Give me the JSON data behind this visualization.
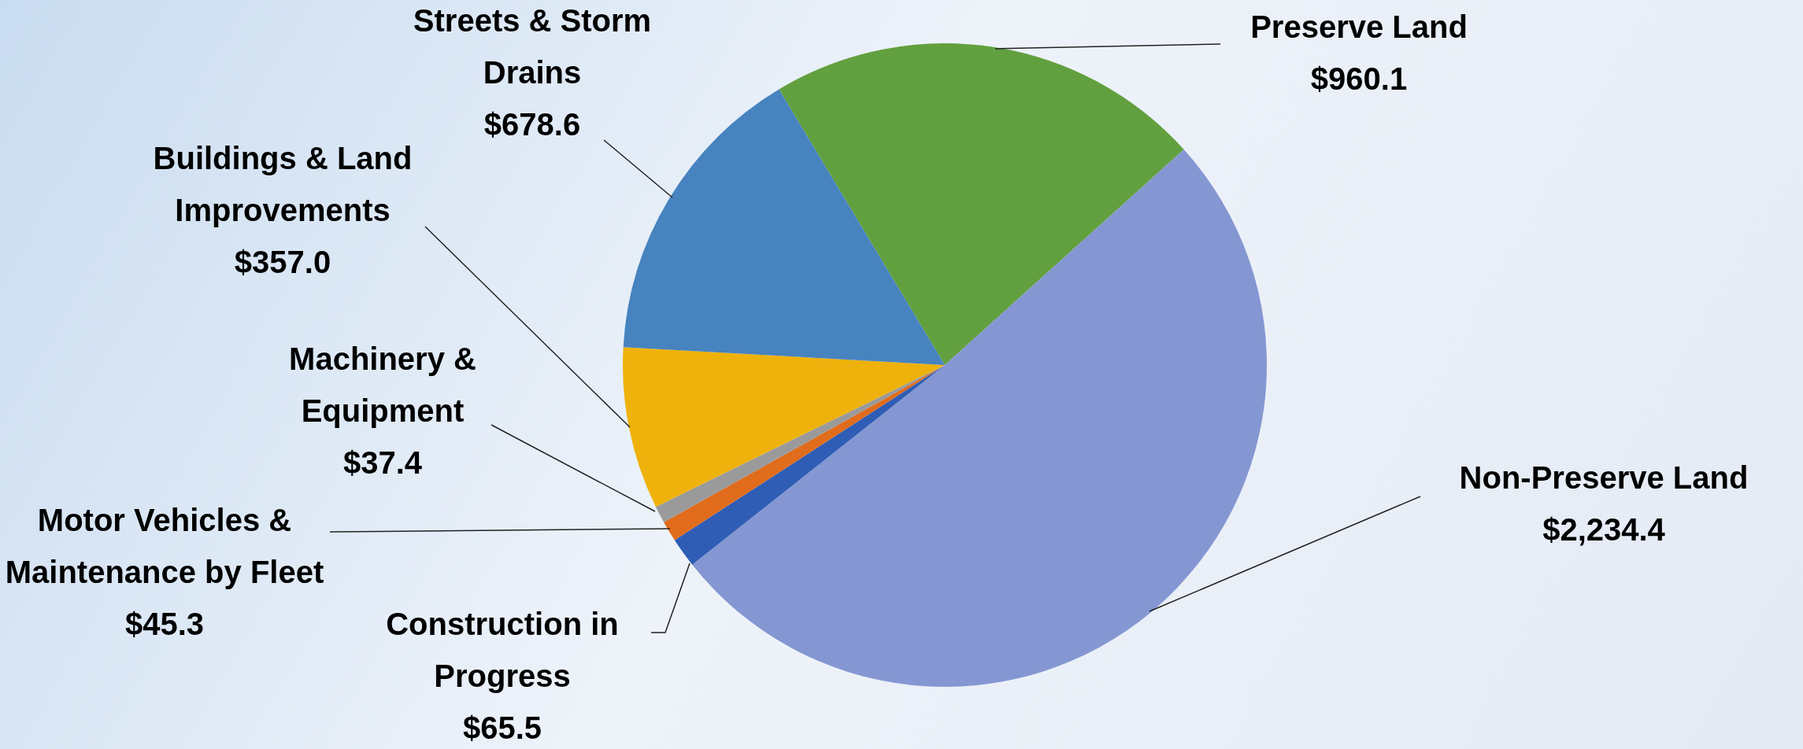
{
  "chart_data": {
    "type": "pie",
    "categories": [
      "Preserve Land",
      "Non-Preserve Land",
      "Construction in Progress",
      "Motor Vehicles & Maintenance by Fleet",
      "Machinery & Equipment",
      "Buildings & Land Improvements",
      "Streets & Storm Drains"
    ],
    "values": [
      960.1,
      2234.4,
      65.5,
      45.3,
      37.4,
      357.0,
      678.6
    ],
    "value_labels": [
      "$960.1",
      "$2,234.4",
      "$65.5",
      "$45.3",
      "$37.4",
      "$357.0",
      "$678.6"
    ],
    "colors": [
      "#62a03f",
      "#8597d2",
      "#2f5db5",
      "#e06c1c",
      "#9a9a9a",
      "#efb20c",
      "#4683bf"
    ],
    "legend": false
  }
}
